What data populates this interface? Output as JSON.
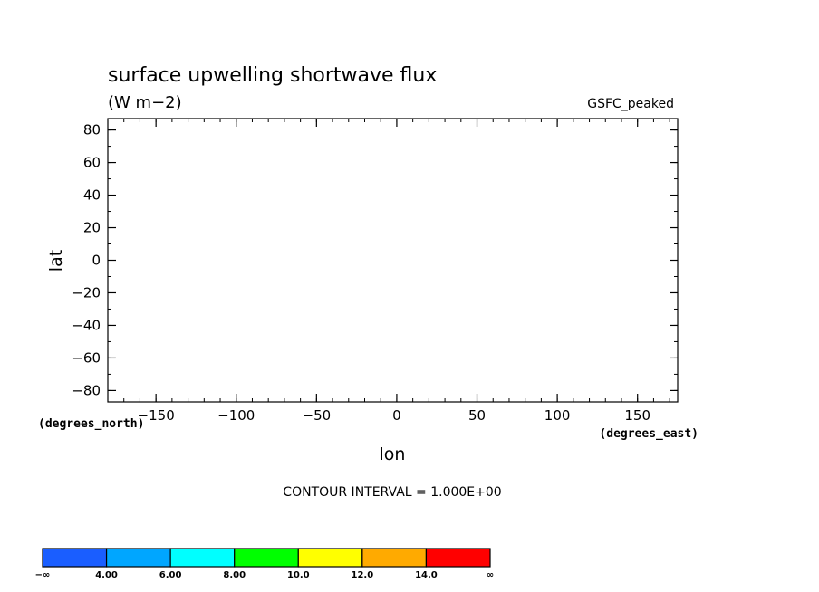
{
  "chart_data": {
    "type": "heatmap",
    "title": "surface upwelling shortwave flux",
    "units": "(W m−2)",
    "dataset": "GSFC_peaked",
    "xlabel": "lon",
    "ylabel": "lat",
    "x_units": "(degrees_east)",
    "y_units": "(degrees_north)",
    "xlim": [
      -180,
      175
    ],
    "ylim": [
      -87,
      87
    ],
    "x_ticks": [
      {
        "value": -150,
        "label": "−150"
      },
      {
        "value": -100,
        "label": "−100"
      },
      {
        "value": -50,
        "label": "−50"
      },
      {
        "value": 0,
        "label": "0"
      },
      {
        "value": 50,
        "label": "50"
      },
      {
        "value": 100,
        "label": "100"
      },
      {
        "value": 150,
        "label": "150"
      }
    ],
    "y_ticks": [
      {
        "value": 80,
        "label": "80"
      },
      {
        "value": 60,
        "label": "60"
      },
      {
        "value": 40,
        "label": "40"
      },
      {
        "value": 20,
        "label": "20"
      },
      {
        "value": 0,
        "label": "0"
      },
      {
        "value": -20,
        "label": "−20"
      },
      {
        "value": -40,
        "label": "−40"
      },
      {
        "value": -60,
        "label": "−60"
      },
      {
        "value": -80,
        "label": "−80"
      }
    ],
    "grid": false,
    "data_points": [],
    "contour_interval": "CONTOUR INTERVAL = 1.000E+00",
    "colorbar": {
      "colors": [
        "#1a5eff",
        "#00a6ff",
        "#00ffff",
        "#00ff00",
        "#ffff00",
        "#ffaa00",
        "#ff0000"
      ],
      "labels": [
        "−∞",
        "4.00",
        "6.00",
        "8.00",
        "10.0",
        "12.0",
        "14.0",
        "∞"
      ]
    }
  }
}
